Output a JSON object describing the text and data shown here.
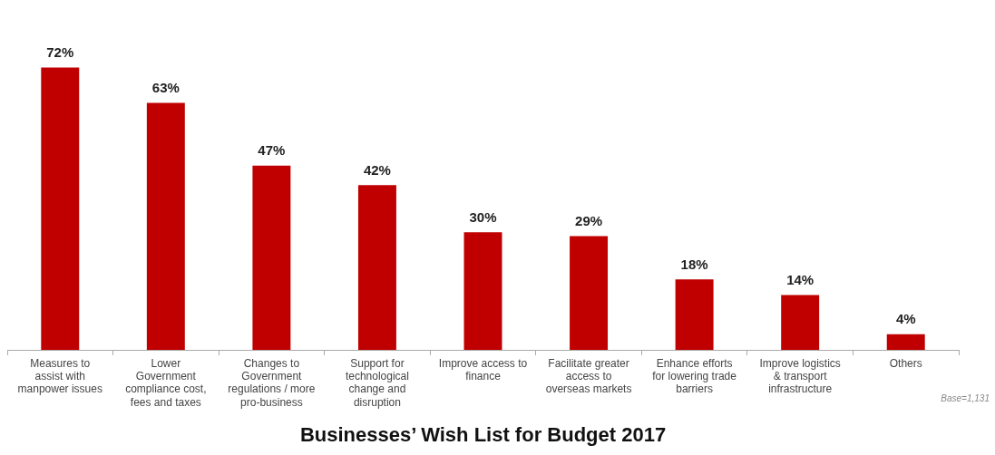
{
  "chart_data": {
    "type": "bar",
    "title": "Businesses’ Wish List for Budget 2017",
    "categories": [
      "Measures to assist with manpower issues",
      "Lower Government compliance cost, fees and taxes",
      "Changes to Government regulations / more pro-business",
      "Support for technological change and disruption",
      "Improve access to finance",
      "Facilitate greater access to overseas markets",
      "Enhance efforts for lowering trade barriers",
      "Improve logistics & transport infrastructure",
      "Others"
    ],
    "values": [
      72,
      63,
      47,
      42,
      30,
      29,
      18,
      14,
      4
    ],
    "color": "#c00000",
    "data_labels": true,
    "value_labels": [
      "72%",
      "63%",
      "47%",
      "42%",
      "30%",
      "29%",
      "18%",
      "14%",
      "4%"
    ],
    "annotations": [
      "Base=1,131"
    ]
  }
}
